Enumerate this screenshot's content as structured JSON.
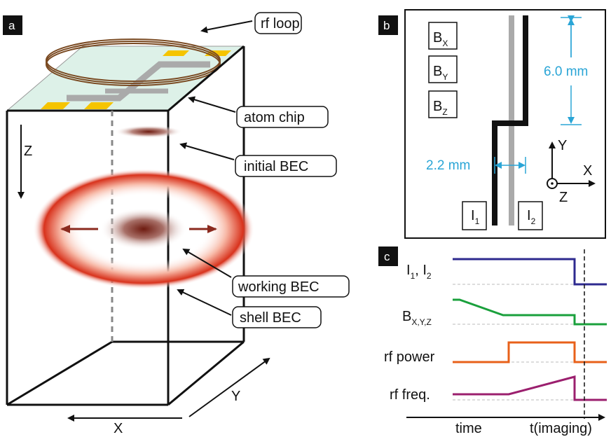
{
  "panel_a": {
    "tag": "a",
    "callouts": {
      "rf_loop": "rf loop",
      "atom_chip": "atom chip",
      "initial_bec": "initial BEC",
      "working_bec": "working BEC",
      "shell_bec": "shell BEC"
    },
    "axes": {
      "z": "Z",
      "x": "X",
      "y": "Y"
    }
  },
  "panel_b": {
    "tag": "b",
    "field_labels": [
      {
        "main": "B",
        "sub": "X"
      },
      {
        "main": "B",
        "sub": "Y"
      },
      {
        "main": "B",
        "sub": "Z"
      }
    ],
    "current_labels": [
      {
        "main": "I",
        "sub": "1"
      },
      {
        "main": "I",
        "sub": "2"
      }
    ],
    "dim_height": "6.0 mm",
    "dim_width": "2.2 mm",
    "axes": {
      "y": "Y",
      "x": "X",
      "z": "Z"
    },
    "colors": {
      "wire_1": "#000000",
      "wire_2": "#aaaaaa",
      "dimension": "#2aa5d6"
    }
  },
  "panel_c": {
    "tag": "c",
    "rows": [
      {
        "label_main": "I",
        "label_parts": [
          "I",
          "1",
          ", I",
          "2"
        ],
        "color": "#2e2a8f"
      },
      {
        "label_main": "B",
        "label_sub": "X,Y,Z",
        "color": "#1aa03c"
      },
      {
        "label": "rf power",
        "color": "#e8611a"
      },
      {
        "label": "rf freq.",
        "color": "#9b1f6e"
      }
    ],
    "x_label_left": "time",
    "x_label_right": "t(imaging)"
  }
}
